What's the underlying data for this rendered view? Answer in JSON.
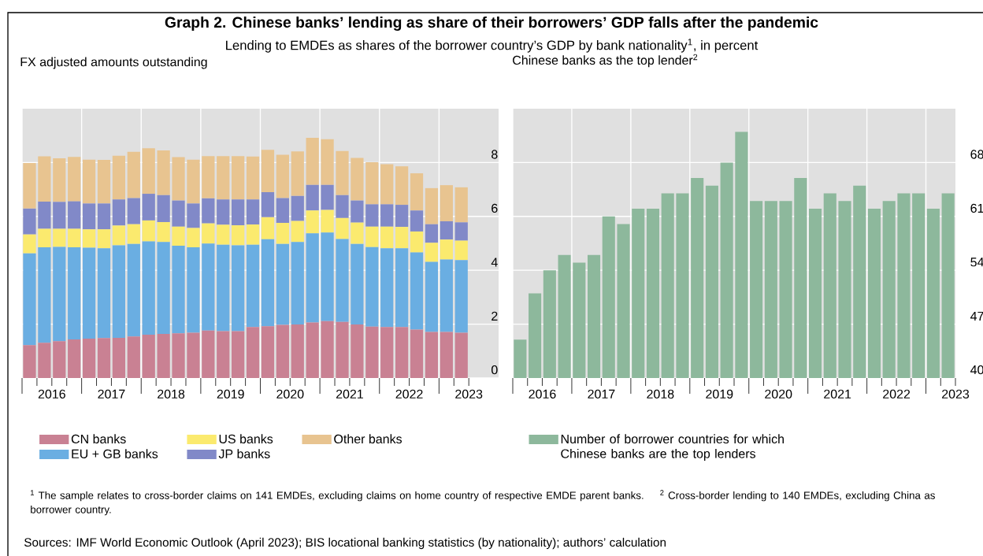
{
  "chart_data": [
    {
      "type": "other",
      "title": "Graph 2. Chinese banks’ lending as share of their borrowers’ GDP falls after the pandemic",
      "subtitle": "Lending to EMDEs as shares of the borrower country’s GDP by bank nationality$^{1}$, in percent",
      "annotations": [
        "$^{1}$ The sample relates to cross-border claims on 141 EMDEs, excluding claims on home country of respective EMDE parent banks.",
        "$^{2}$ Cross-border lending to 140 EMDEs, excluding China as borrower country.",
        "Sources: IMF World Economic Outlook (April 2023); BIS locational banking statistics (by nationality); authors’ calculation"
      ]
    },
    {
      "type": "bar",
      "stacked": true,
      "title": "FX adjusted amounts outstanding",
      "grid": true,
      "legend": "bottom",
      "x": [
        2016.125,
        2016.375,
        2016.625,
        2016.875,
        2017.125,
        2017.375,
        2017.625,
        2017.875,
        2018.125,
        2018.375,
        2018.625,
        2018.875,
        2019.125,
        2019.375,
        2019.625,
        2019.875,
        2020.125,
        2020.375,
        2020.625,
        2020.875,
        2021.125,
        2021.375,
        2021.625,
        2021.875,
        2022.125,
        2022.375,
        2022.625,
        2022.875,
        2023.125,
        2023.375
      ],
      "xlim": [
        2016,
        2024
      ],
      "xticks": [
        {
          "value": 2016,
          "label": null
        },
        {
          "value": 2016.25,
          "label": null
        },
        {
          "value": 2016.5,
          "label": "2016"
        },
        {
          "value": 2016.75,
          "label": null
        },
        {
          "value": 2017,
          "label": null
        },
        {
          "value": 2017.25,
          "label": null
        },
        {
          "value": 2017.5,
          "label": "2017"
        },
        {
          "value": 2017.75,
          "label": null
        },
        {
          "value": 2018,
          "label": null
        },
        {
          "value": 2018.25,
          "label": null
        },
        {
          "value": 2018.5,
          "label": "2018"
        },
        {
          "value": 2018.75,
          "label": null
        },
        {
          "value": 2019,
          "label": null
        },
        {
          "value": 2019.25,
          "label": null
        },
        {
          "value": 2019.5,
          "label": "2019"
        },
        {
          "value": 2019.75,
          "label": null
        },
        {
          "value": 2020,
          "label": null
        },
        {
          "value": 2020.25,
          "label": null
        },
        {
          "value": 2020.5,
          "label": "2020"
        },
        {
          "value": 2020.75,
          "label": null
        },
        {
          "value": 2021,
          "label": null
        },
        {
          "value": 2021.25,
          "label": null
        },
        {
          "value": 2021.5,
          "label": "2021"
        },
        {
          "value": 2021.75,
          "label": null
        },
        {
          "value": 2022,
          "label": null
        },
        {
          "value": 2022.25,
          "label": null
        },
        {
          "value": 2022.5,
          "label": "2022"
        },
        {
          "value": 2022.75,
          "label": null
        },
        {
          "value": 2023,
          "label": null
        },
        {
          "value": 2023.25,
          "label": null
        },
        {
          "value": 2023.5,
          "label": "2023"
        }
      ],
      "ylim": [
        0,
        10
      ],
      "yticks": [
        0,
        2,
        4,
        6,
        8
      ],
      "series": [
        {
          "name": "CN banks",
          "color": "#c98193",
          "values": [
            1.22,
            1.31,
            1.37,
            1.43,
            1.46,
            1.48,
            1.49,
            1.54,
            1.61,
            1.64,
            1.66,
            1.68,
            1.76,
            1.74,
            1.74,
            1.89,
            1.92,
            1.97,
            1.99,
            2.06,
            2.11,
            2.08,
            1.99,
            1.91,
            1.89,
            1.89,
            1.8,
            1.71,
            1.71,
            1.68
          ]
        },
        {
          "name": "EU + GB banks",
          "color": "#6aaee2",
          "values": [
            3.41,
            3.54,
            3.5,
            3.42,
            3.38,
            3.34,
            3.44,
            3.44,
            3.46,
            3.41,
            3.25,
            3.17,
            3.23,
            3.21,
            3.19,
            3.06,
            3.23,
            3.01,
            3.06,
            3.31,
            3.29,
            3.08,
            2.99,
            2.95,
            2.93,
            2.93,
            2.86,
            2.6,
            2.69,
            2.7
          ]
        },
        {
          "name": "US banks",
          "color": "#fbea6e",
          "values": [
            0.7,
            0.69,
            0.67,
            0.69,
            0.68,
            0.7,
            0.73,
            0.73,
            0.78,
            0.74,
            0.71,
            0.72,
            0.75,
            0.74,
            0.74,
            0.75,
            0.82,
            0.78,
            0.78,
            0.85,
            0.84,
            0.78,
            0.79,
            0.76,
            0.8,
            0.79,
            0.78,
            0.71,
            0.74,
            0.72
          ]
        },
        {
          "name": "JP banks",
          "color": "#8189c8",
          "values": [
            0.96,
            1.01,
            1.0,
            1.02,
            0.96,
            0.96,
            0.97,
            0.97,
            0.99,
            1.0,
            0.97,
            0.91,
            0.93,
            0.94,
            0.96,
            0.93,
            0.93,
            0.92,
            0.93,
            0.95,
            0.93,
            0.85,
            0.82,
            0.83,
            0.83,
            0.82,
            0.78,
            0.69,
            0.68,
            0.68
          ]
        },
        {
          "name": "Other banks",
          "color": "#e8c490",
          "values": [
            1.69,
            1.68,
            1.62,
            1.65,
            1.63,
            1.62,
            1.62,
            1.72,
            1.69,
            1.66,
            1.61,
            1.63,
            1.57,
            1.61,
            1.61,
            1.59,
            1.57,
            1.61,
            1.65,
            1.75,
            1.7,
            1.64,
            1.58,
            1.56,
            1.49,
            1.43,
            1.38,
            1.34,
            1.34,
            1.3
          ]
        }
      ]
    },
    {
      "type": "bar",
      "title": "Chinese banks as the top lender$^{2}$",
      "grid": true,
      "legend": "bottom",
      "x": [
        2016.125,
        2016.375,
        2016.625,
        2016.875,
        2017.125,
        2017.375,
        2017.625,
        2017.875,
        2018.125,
        2018.375,
        2018.625,
        2018.875,
        2019.125,
        2019.375,
        2019.625,
        2019.875,
        2020.125,
        2020.375,
        2020.625,
        2020.875,
        2021.125,
        2021.375,
        2021.625,
        2021.875,
        2022.125,
        2022.375,
        2022.625,
        2022.875,
        2023.125,
        2023.375
      ],
      "xlim": [
        2016,
        2023.5
      ],
      "xticks": [
        {
          "value": 2016,
          "label": null
        },
        {
          "value": 2016.25,
          "label": null
        },
        {
          "value": 2016.5,
          "label": "2016"
        },
        {
          "value": 2016.75,
          "label": null
        },
        {
          "value": 2017,
          "label": null
        },
        {
          "value": 2017.25,
          "label": null
        },
        {
          "value": 2017.5,
          "label": "2017"
        },
        {
          "value": 2017.75,
          "label": null
        },
        {
          "value": 2018,
          "label": null
        },
        {
          "value": 2018.25,
          "label": null
        },
        {
          "value": 2018.5,
          "label": "2018"
        },
        {
          "value": 2018.75,
          "label": null
        },
        {
          "value": 2019,
          "label": null
        },
        {
          "value": 2019.25,
          "label": null
        },
        {
          "value": 2019.5,
          "label": "2019"
        },
        {
          "value": 2019.75,
          "label": null
        },
        {
          "value": 2020,
          "label": null
        },
        {
          "value": 2020.25,
          "label": null
        },
        {
          "value": 2020.5,
          "label": "2020"
        },
        {
          "value": 2020.75,
          "label": null
        },
        {
          "value": 2021,
          "label": null
        },
        {
          "value": 2021.25,
          "label": null
        },
        {
          "value": 2021.5,
          "label": "2021"
        },
        {
          "value": 2021.75,
          "label": null
        },
        {
          "value": 2022,
          "label": null
        },
        {
          "value": 2022.25,
          "label": null
        },
        {
          "value": 2022.5,
          "label": "2022"
        },
        {
          "value": 2022.75,
          "label": null
        },
        {
          "value": 2023,
          "label": null
        },
        {
          "value": 2023.25,
          "label": null
        },
        {
          "value": 2023.5,
          "label": "2023"
        }
      ],
      "ylim": [
        40,
        75
      ],
      "yticks": [
        40,
        47,
        54,
        61,
        68
      ],
      "series": [
        {
          "name": "Number of borrower countries for which Chinese banks are the top lenders",
          "color": "#8db89c",
          "values": [
            45,
            51,
            54,
            56,
            55,
            56,
            61,
            60,
            62,
            62,
            64,
            64,
            66,
            65,
            68,
            72,
            63,
            63,
            63,
            66,
            62,
            64,
            63,
            65,
            62,
            63,
            64,
            64,
            62,
            64
          ]
        }
      ]
    }
  ]
}
